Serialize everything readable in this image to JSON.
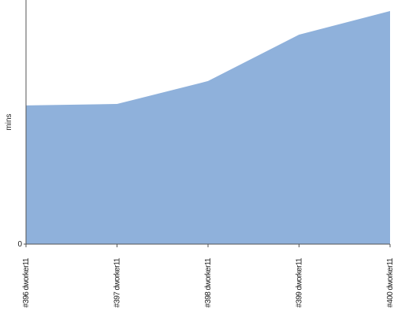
{
  "chart_data": {
    "type": "area",
    "y_label": "mins",
    "categories": [
      "#396 dworker11",
      "#397 dworker11",
      "#398 dworker11",
      "#399 dworker11",
      "#400 dworker11"
    ],
    "values": [
      5.68,
      5.74,
      6.68,
      8.58,
      9.55
    ],
    "color": "#8fb1db",
    "ylim": [
      0,
      10
    ],
    "yticks": [
      0
    ]
  }
}
